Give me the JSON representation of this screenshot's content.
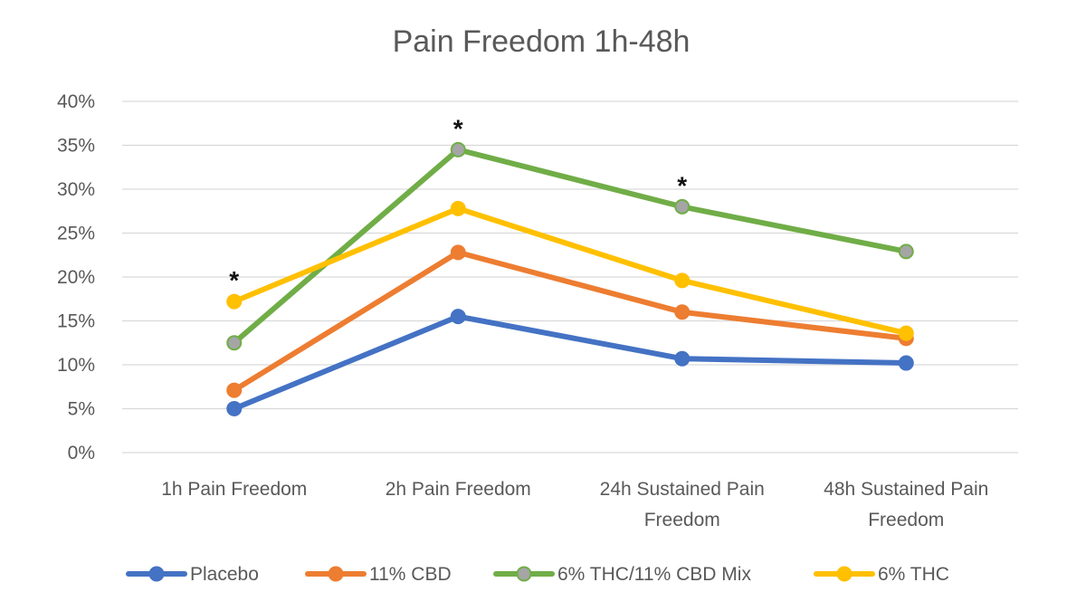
{
  "chart_data": {
    "type": "line",
    "title": "Pain Freedom 1h-48h",
    "xlabel": "",
    "ylabel": "",
    "ylim": [
      0,
      0.4
    ],
    "yticks": [
      "0%",
      "5%",
      "10%",
      "15%",
      "20%",
      "25%",
      "30%",
      "35%",
      "40%"
    ],
    "categories": [
      [
        "1h Pain Freedom"
      ],
      [
        "2h Pain Freedom"
      ],
      [
        "24h Sustained Pain",
        "Freedom"
      ],
      [
        "48h Sustained Pain",
        "Freedom"
      ]
    ],
    "grid": true,
    "legend_position": "bottom",
    "series": [
      {
        "name": "Placebo",
        "color": "#4472c4",
        "values": [
          0.05,
          0.155,
          0.107,
          0.102
        ]
      },
      {
        "name": "11% CBD",
        "color": "#ed7d31",
        "values": [
          0.071,
          0.228,
          0.16,
          0.13
        ]
      },
      {
        "name": "6% THC/11% CBD Mix",
        "color": "#70ad47",
        "marker_color": "#a5a5a5",
        "values": [
          0.125,
          0.345,
          0.28,
          0.229
        ]
      },
      {
        "name": "6% THC",
        "color": "#ffc000",
        "values": [
          0.172,
          0.278,
          0.196,
          0.136
        ]
      }
    ],
    "annotations": [
      {
        "text": "*",
        "category_index": 0,
        "y": 0.172
      },
      {
        "text": "*",
        "category_index": 1,
        "y": 0.345
      },
      {
        "text": "*",
        "category_index": 2,
        "y": 0.28
      }
    ]
  }
}
